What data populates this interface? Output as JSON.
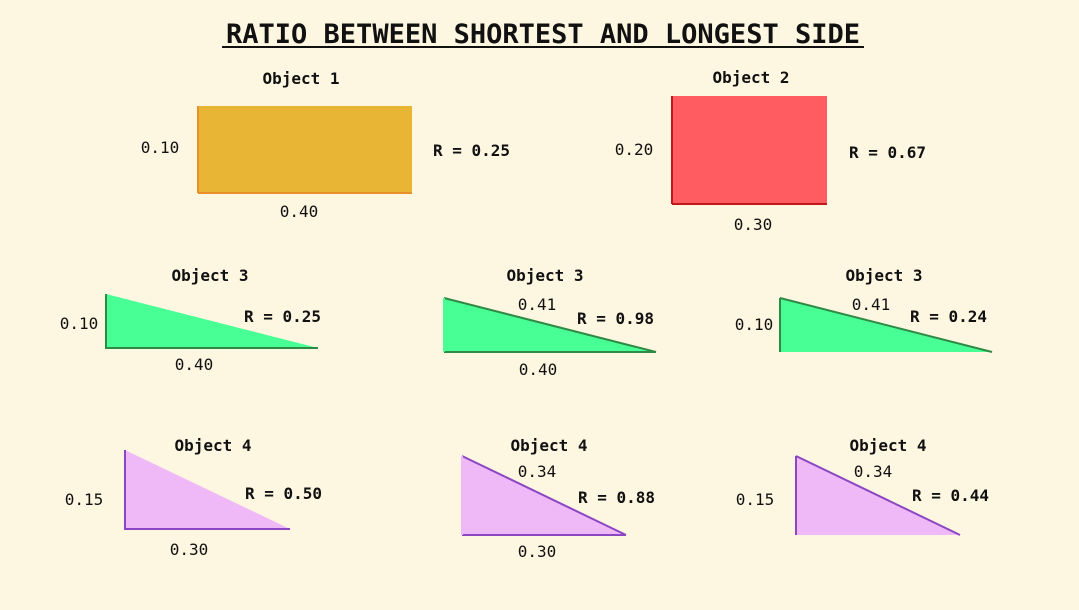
{
  "title": "RATIO BETWEEN SHORTEST AND LONGEST SIDE",
  "colors": {
    "background": "#fdf6e0",
    "object1_fill": "#e9b535",
    "object1_stroke": "#e8902c",
    "object2_fill": "#ff5c62",
    "object2_stroke": "#c0181e",
    "object3_fill": "#47ff95",
    "object3_stroke": "#2f8a45",
    "object4_fill": "#efb9f8",
    "object4_stroke": "#8c46c4"
  },
  "objects": [
    {
      "label": "Object 1",
      "shape": "rectangle",
      "short_side": "0.10",
      "long_side": "0.40",
      "ratio": "R = 0.25"
    },
    {
      "label": "Object 2",
      "shape": "rectangle",
      "short_side": "0.20",
      "long_side": "0.30",
      "ratio": "R = 0.67"
    },
    {
      "label": "Object 3",
      "shape": "right-triangle",
      "side_a": "0.10",
      "side_b": "0.40",
      "ratio": "R = 0.25"
    },
    {
      "label": "Object 3",
      "shape": "right-triangle",
      "side_a": "0.41",
      "side_b": "0.40",
      "ratio": "R = 0.98"
    },
    {
      "label": "Object 3",
      "shape": "right-triangle",
      "side_a": "0.10",
      "side_b": "0.41",
      "ratio": "R = 0.24"
    },
    {
      "label": "Object 4",
      "shape": "right-triangle",
      "side_a": "0.15",
      "side_b": "0.30",
      "ratio": "R = 0.50"
    },
    {
      "label": "Object 4",
      "shape": "right-triangle",
      "side_a": "0.34",
      "side_b": "0.30",
      "ratio": "R = 0.88"
    },
    {
      "label": "Object 4",
      "shape": "right-triangle",
      "side_a": "0.15",
      "side_b": "0.34",
      "ratio": "R = 0.44"
    }
  ]
}
